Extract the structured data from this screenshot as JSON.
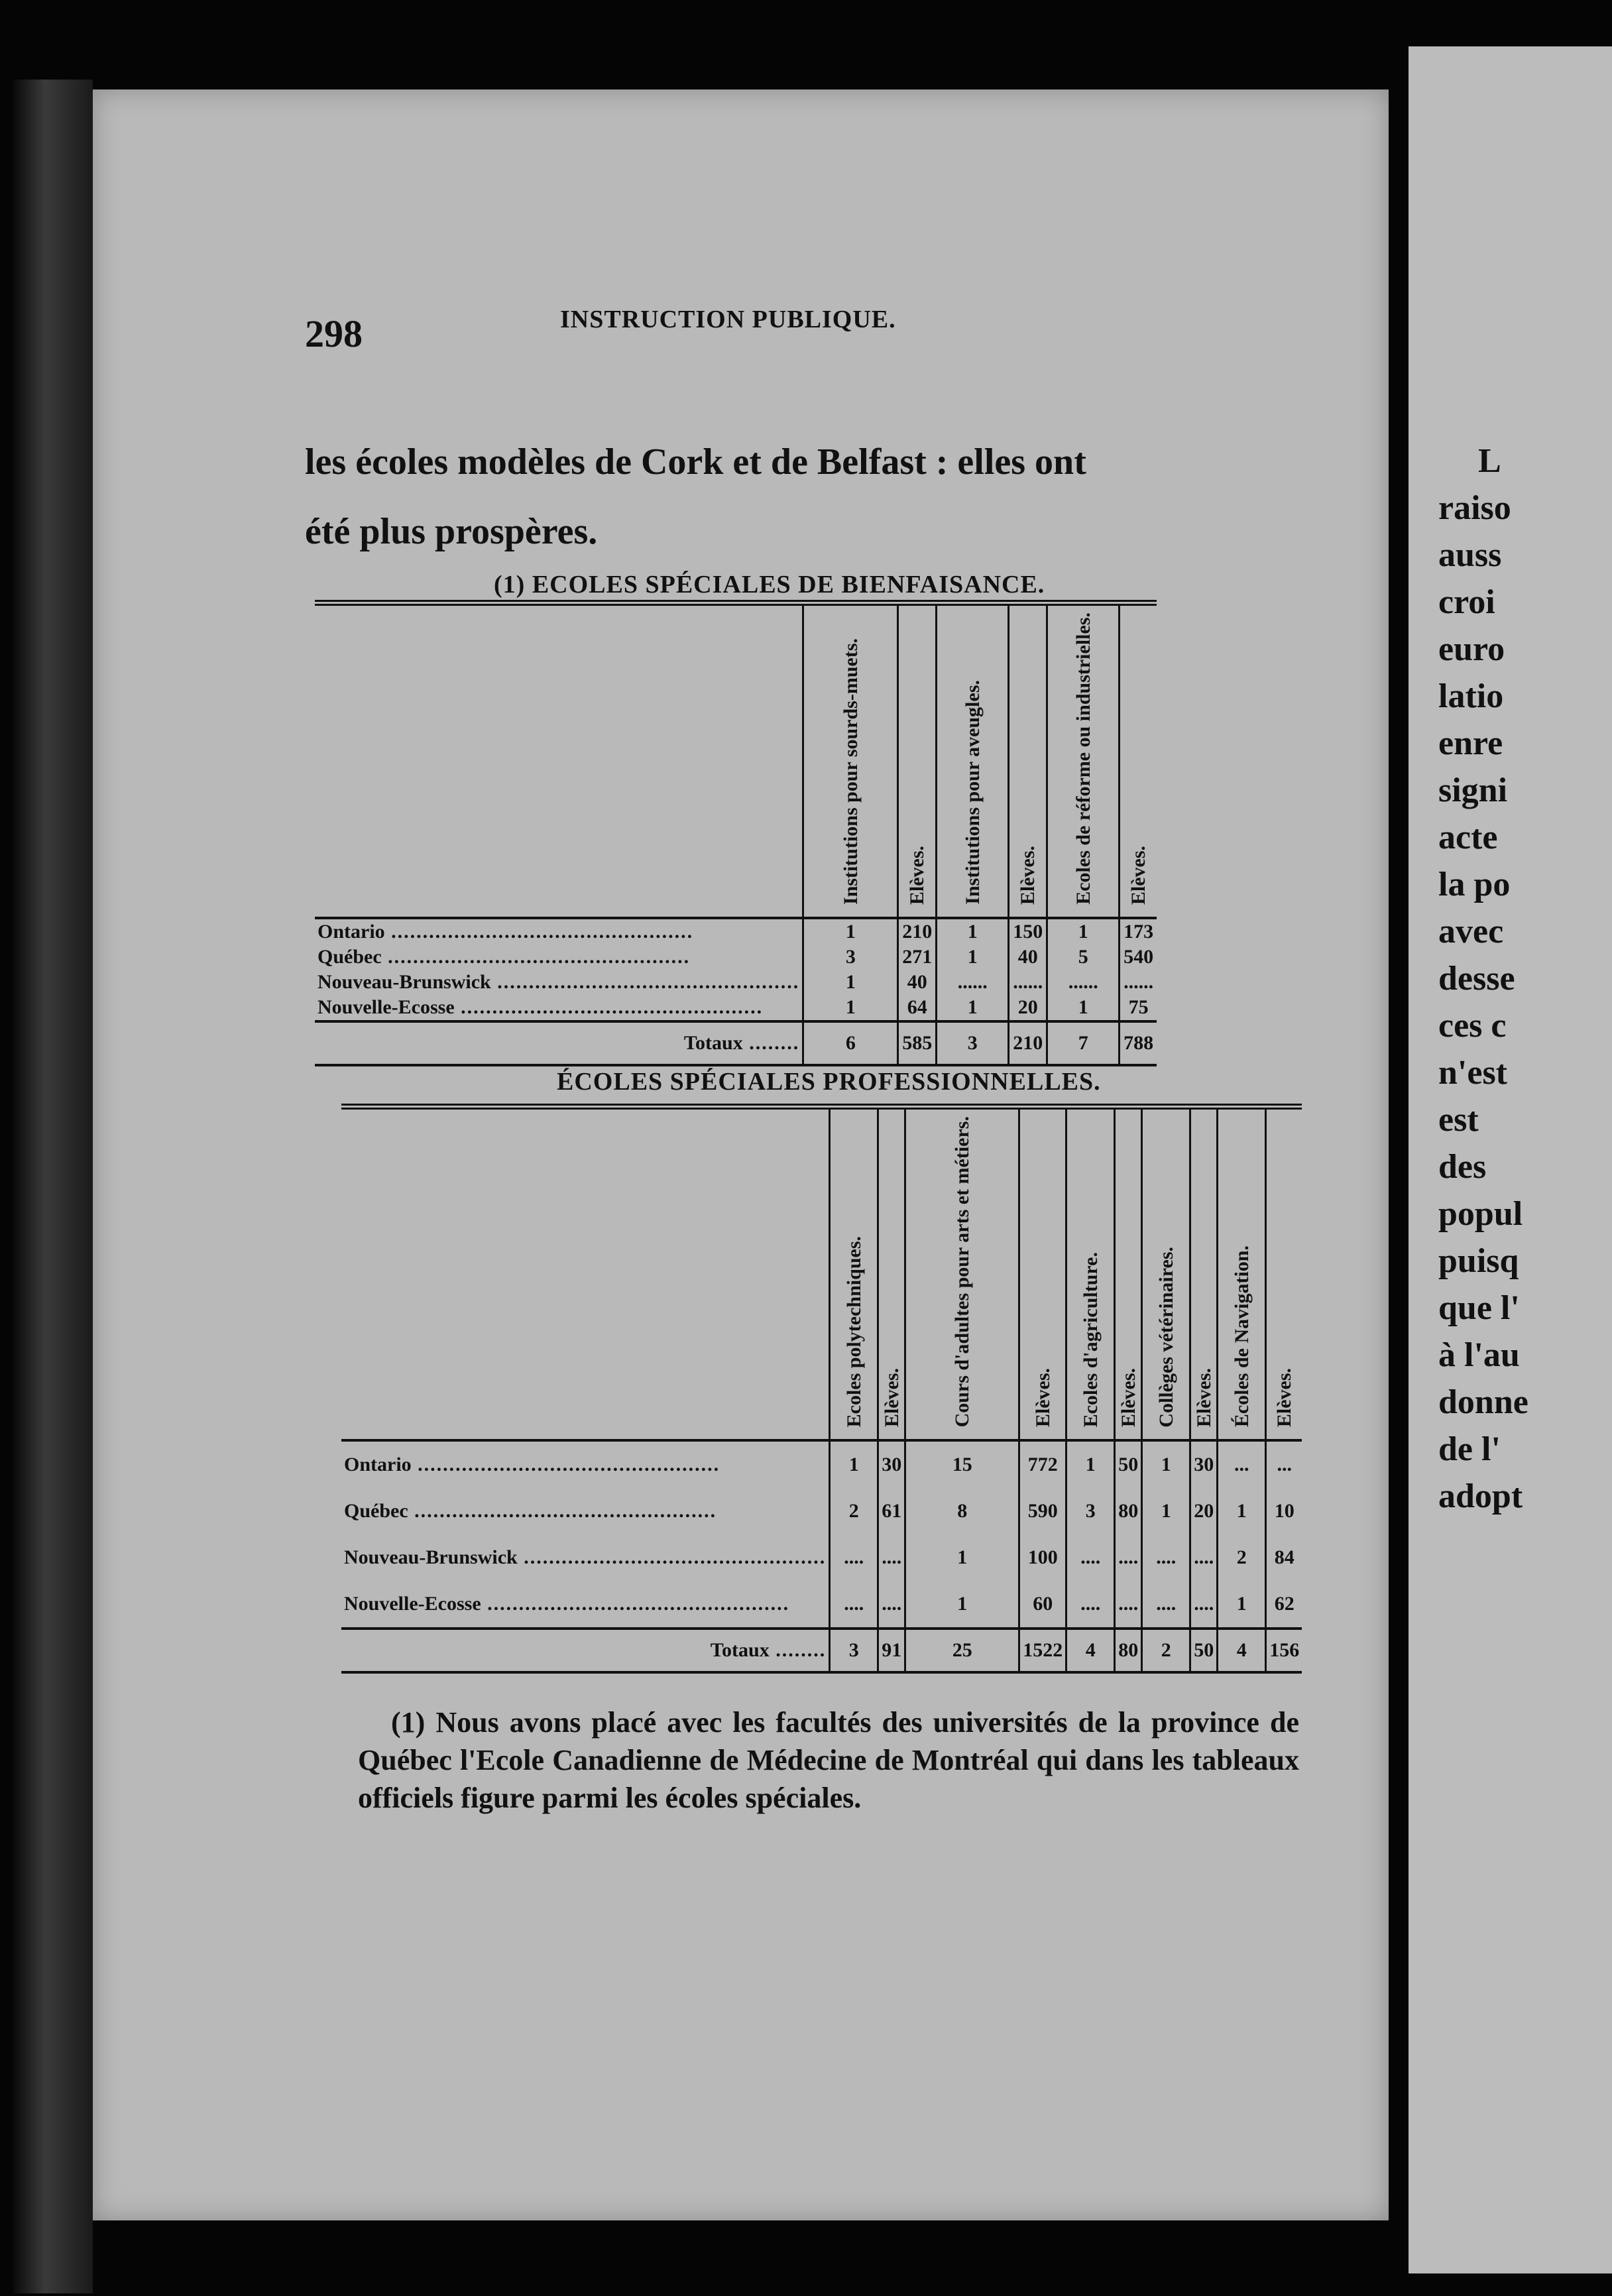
{
  "page_number": "298",
  "running_head": "INSTRUCTION PUBLIQUE.",
  "body_lines": [
    "les écoles modèles de Cork et de Belfast : elles ont",
    "été plus prospères."
  ],
  "table1": {
    "title": "(1) ECOLES SPÉCIALES DE BIENFAISANCE.",
    "headers": [
      "Institutions pour sourds-muets.",
      "Elèves.",
      "Institutions pour aveugles.",
      "Elèves.",
      "Ecoles de réforme ou industrielles.",
      "Elèves."
    ],
    "rows": [
      {
        "label": "Ontario",
        "values": [
          "1",
          "210",
          "1",
          "150",
          "1",
          "173"
        ]
      },
      {
        "label": "Québec",
        "values": [
          "3",
          "271",
          "1",
          "40",
          "5",
          "540"
        ]
      },
      {
        "label": "Nouveau-Brunswick",
        "values": [
          "1",
          "40",
          "......",
          "......",
          "......",
          "......"
        ]
      },
      {
        "label": "Nouvelle-Ecosse",
        "values": [
          "1",
          "64",
          "1",
          "20",
          "1",
          "75"
        ]
      }
    ],
    "totals": {
      "label": "Totaux",
      "values": [
        "6",
        "585",
        "3",
        "210",
        "7",
        "788"
      ]
    }
  },
  "table2": {
    "title": "ÉCOLES SPÉCIALES PROFESSIONNELLES.",
    "headers": [
      "Ecoles polytechniques.",
      "Elèves.",
      "Cours d'adultes pour arts et métiers.",
      "Elèves.",
      "Ecoles d'agriculture.",
      "Elèves.",
      "Collèges vétérinaires.",
      "Elèves.",
      "Écoles de Navigation.",
      "Elèves."
    ],
    "rows": [
      {
        "label": "Ontario",
        "values": [
          "1",
          "30",
          "15",
          "772",
          "1",
          "50",
          "1",
          "30",
          "...",
          "..."
        ]
      },
      {
        "label": "Québec",
        "values": [
          "2",
          "61",
          "8",
          "590",
          "3",
          "80",
          "1",
          "20",
          "1",
          "10"
        ]
      },
      {
        "label": "Nouveau-Brunswick",
        "values": [
          "....",
          "....",
          "1",
          "100",
          "....",
          "....",
          "....",
          "....",
          "2",
          "84"
        ]
      },
      {
        "label": "Nouvelle-Ecosse",
        "values": [
          "....",
          "....",
          "1",
          "60",
          "....",
          "....",
          "....",
          "....",
          "1",
          "62"
        ]
      }
    ],
    "totals": {
      "label": "Totaux",
      "values": [
        "3",
        "91",
        "25",
        "1522",
        "4",
        "80",
        "2",
        "50",
        "4",
        "156"
      ]
    }
  },
  "footnote": "(1) Nous avons placé avec les facultés des universités de la province de Québec l'Ecole Canadienne de Médecine de Montréal qui dans les tableaux officiels figure parmi les écoles spéciales.",
  "right_page_fragments": [
    "L",
    "raiso",
    "auss",
    "croi",
    "euro",
    "latio",
    "enre",
    "signi",
    "acte",
    "la po",
    "avec",
    "desse",
    "ces c",
    "n'est",
    "est",
    "des",
    "popul",
    "puisq",
    "que l'",
    "à l'au",
    "donne",
    "de l'",
    "adopt"
  ]
}
